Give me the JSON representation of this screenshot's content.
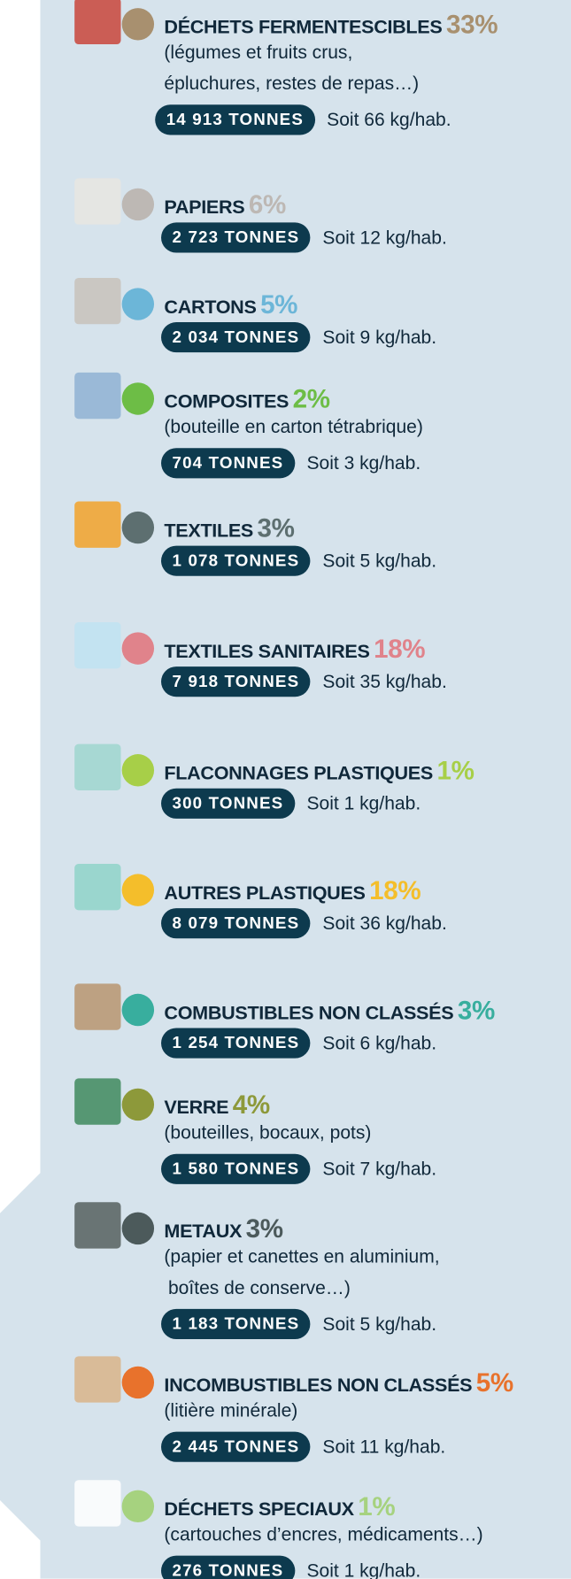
{
  "items": [
    {
      "name": "DÉCHETS FERMENTESCIBLES",
      "percent": "33%",
      "color": "#a8906f",
      "description": [
        "(légumes et fruits crus,",
        "épluchures, restes de repas…)"
      ],
      "tonnes": "14 913 TONNES",
      "per_hab": "Soit 66 kg/hab."
    },
    {
      "name": "PAPIERS",
      "percent": "6%",
      "color": "#bdb8b4",
      "description": [],
      "tonnes": "2 723 TONNES",
      "per_hab": "Soit 12 kg/hab."
    },
    {
      "name": "CARTONS",
      "percent": "5%",
      "color": "#6cb6d8",
      "description": [],
      "tonnes": "2 034 TONNES",
      "per_hab": "Soit 9 kg/hab."
    },
    {
      "name": "COMPOSITES",
      "percent": "2%",
      "color": "#6dbd46",
      "description": [
        "(bouteille en carton tétrabrique)"
      ],
      "tonnes": "704 TONNES",
      "per_hab": "Soit 3 kg/hab."
    },
    {
      "name": "TEXTILES",
      "percent": "3%",
      "color": "#5d6f70",
      "description": [],
      "tonnes": "1 078 TONNES",
      "per_hab": "Soit 5 kg/hab."
    },
    {
      "name": "TEXTILES SANITAIRES",
      "percent": "18%",
      "color": "#e0838b",
      "description": [],
      "tonnes": "7 918 TONNES",
      "per_hab": "Soit 35 kg/hab."
    },
    {
      "name": "FLACONNAGES PLASTIQUES",
      "percent": "1%",
      "color": "#a7cf48",
      "description": [],
      "tonnes": "300 TONNES",
      "per_hab": "Soit 1 kg/hab."
    },
    {
      "name": "AUTRES PLASTIQUES",
      "percent": "18%",
      "color": "#f4be2b",
      "description": [],
      "tonnes": "8 079 TONNES",
      "per_hab": "Soit 36 kg/hab."
    },
    {
      "name": "COMBUSTIBLES NON CLASSÉS",
      "percent": "3%",
      "color": "#38ae9e",
      "description": [],
      "tonnes": "1 254 TONNES",
      "per_hab": "Soit 6 kg/hab."
    },
    {
      "name": "VERRE",
      "percent": "4%",
      "color": "#8d993a",
      "description": [
        "(bouteilles, bocaux, pots)"
      ],
      "tonnes": "1 580 TONNES",
      "per_hab": "Soit 7 kg/hab."
    },
    {
      "name": "METAUX",
      "percent": "3%",
      "color": "#4c5a5b",
      "description": [
        "(papier et canettes en aluminium,",
        "boîtes de conserve…)"
      ],
      "tonnes": "1 183 TONNES",
      "per_hab": "Soit 5 kg/hab."
    },
    {
      "name": "INCOMBUSTIBLES NON CLASSÉS",
      "percent": "5%",
      "color": "#e8722c",
      "description": [
        "(litière minérale)"
      ],
      "tonnes": "2 445 TONNES",
      "per_hab": "Soit 11 kg/hab."
    },
    {
      "name": "DÉCHETS SPECIAUX",
      "percent": "1%",
      "color": "#a6d27f",
      "description": [
        "(cartouches d’encres, médicaments…)"
      ],
      "tonnes": "276 TONNES",
      "per_hab": "Soit 1 kg/hab."
    }
  ]
}
